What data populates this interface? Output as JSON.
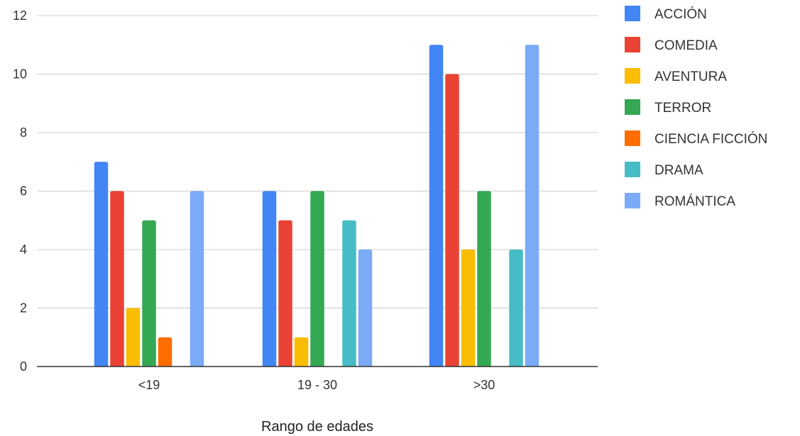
{
  "chart_data": {
    "type": "bar",
    "title": "",
    "xlabel": "Rango de edades",
    "ylabel": "",
    "ylim": [
      0,
      12
    ],
    "yticks": [
      0,
      2,
      4,
      6,
      8,
      10,
      12
    ],
    "grid": true,
    "legend_position": "right",
    "categories": [
      "<19",
      "19 - 30",
      ">30"
    ],
    "series": [
      {
        "name": "ACCIÓN",
        "color": "#4285f4",
        "values": [
          7,
          6,
          11
        ]
      },
      {
        "name": "COMEDIA",
        "color": "#ea4335",
        "values": [
          6,
          5,
          10
        ]
      },
      {
        "name": "AVENTURA",
        "color": "#fbbc04",
        "values": [
          2,
          1,
          4
        ]
      },
      {
        "name": "TERROR",
        "color": "#34a853",
        "values": [
          5,
          6,
          6
        ]
      },
      {
        "name": "CIENCIA FICCIÓN",
        "color": "#ff6d01",
        "values": [
          1,
          0,
          0
        ]
      },
      {
        "name": "DRAMA",
        "color": "#46bdc6",
        "values": [
          0,
          5,
          4
        ]
      },
      {
        "name": "ROMÁNTICA",
        "color": "#7baaf7",
        "values": [
          6,
          4,
          11
        ]
      }
    ]
  }
}
